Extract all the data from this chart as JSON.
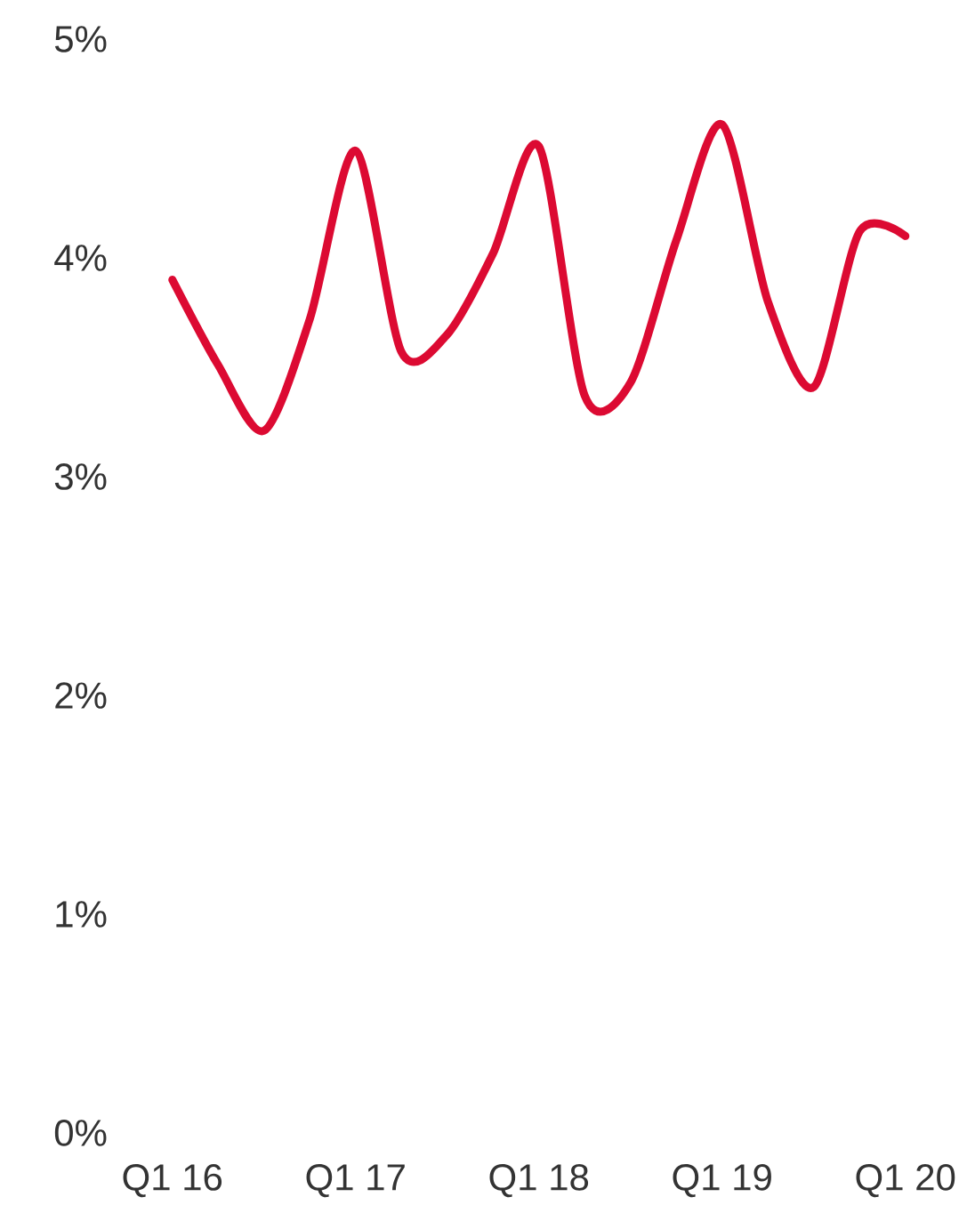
{
  "chart_data": {
    "type": "line",
    "categories": [
      "Q1 16",
      null,
      null,
      null,
      "Q1 17",
      null,
      null,
      null,
      "Q1 18",
      null,
      null,
      null,
      "Q1 19",
      null,
      null,
      null,
      "Q1 20"
    ],
    "series": [
      {
        "color": "#dc0a32",
        "values": [
          3.9,
          3.51,
          3.21,
          3.72,
          4.49,
          3.57,
          3.65,
          4.02,
          4.51,
          3.37,
          3.43,
          4.08,
          4.61,
          3.8,
          3.41,
          4.12,
          4.1
        ]
      }
    ],
    "ylim": [
      0,
      5
    ],
    "yticks": [
      {
        "value": 0,
        "label": "0%"
      },
      {
        "value": 1,
        "label": "1%"
      },
      {
        "value": 2,
        "label": "2%"
      },
      {
        "value": 3,
        "label": "3%"
      },
      {
        "value": 4,
        "label": "4%"
      },
      {
        "value": 5,
        "label": "5%"
      }
    ],
    "grid": false,
    "marker": "none",
    "line_style": "solid"
  }
}
